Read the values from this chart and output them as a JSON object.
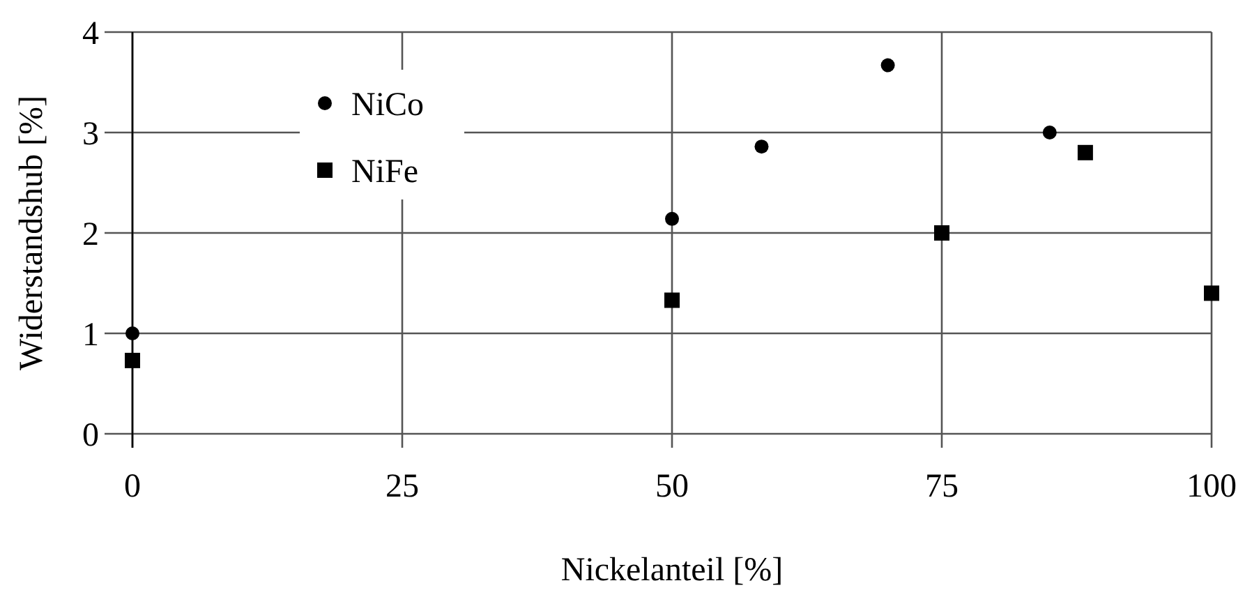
{
  "chart_data": {
    "type": "scatter",
    "xlabel": "Nickelanteil [%]",
    "ylabel": "Widerstandshub [%]",
    "xlim": [
      0,
      100
    ],
    "xticks": [
      0,
      25,
      50,
      75,
      100
    ],
    "ylim": [
      0,
      4
    ],
    "yticks": [
      0,
      1,
      2,
      3,
      4
    ],
    "grid": true,
    "legend": "top left",
    "series": [
      {
        "name": "NiCo",
        "color": "#000000",
        "marker": "circle",
        "x": [
          0,
          50,
          58.3,
          70,
          85
        ],
        "values": [
          1.0,
          2.14,
          2.86,
          3.67,
          3.0
        ]
      },
      {
        "name": "NiFe",
        "color": "#000000",
        "marker": "square",
        "x": [
          0,
          50,
          75,
          88.3,
          100
        ],
        "values": [
          0.73,
          1.33,
          2.0,
          2.8,
          1.4
        ]
      }
    ]
  }
}
